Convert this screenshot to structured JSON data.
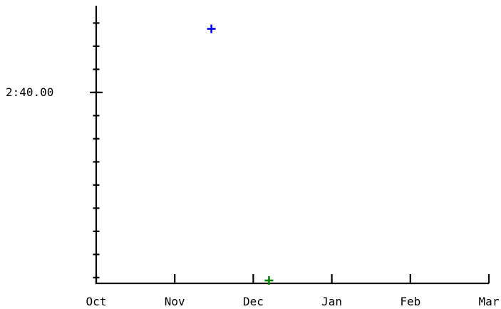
{
  "chart_data": {
    "type": "scatter",
    "title": "",
    "xlabel": "",
    "ylabel": "",
    "x_axis": {
      "kind": "date",
      "range": [
        "Oct",
        "Mar"
      ],
      "tick_labels": [
        "Oct",
        "Nov",
        "Dec",
        "Jan",
        "Feb",
        "Mar"
      ]
    },
    "y_axis": {
      "kind": "duration",
      "labeled_ticks": [
        {
          "value_seconds": 160,
          "label": "2:40.00"
        }
      ],
      "minor_tick_step_seconds": 4,
      "range_seconds": [
        127,
        175
      ]
    },
    "grid": false,
    "legend": "none",
    "series": [
      {
        "marker": "plus",
        "color": "#0000ff",
        "points": [
          {
            "x": "Nov 15",
            "y": "2:51.00"
          }
        ]
      },
      {
        "marker": "plus",
        "color": "#008000",
        "points": [
          {
            "x": "Dec 7",
            "y": "2:07.50"
          }
        ]
      }
    ]
  }
}
